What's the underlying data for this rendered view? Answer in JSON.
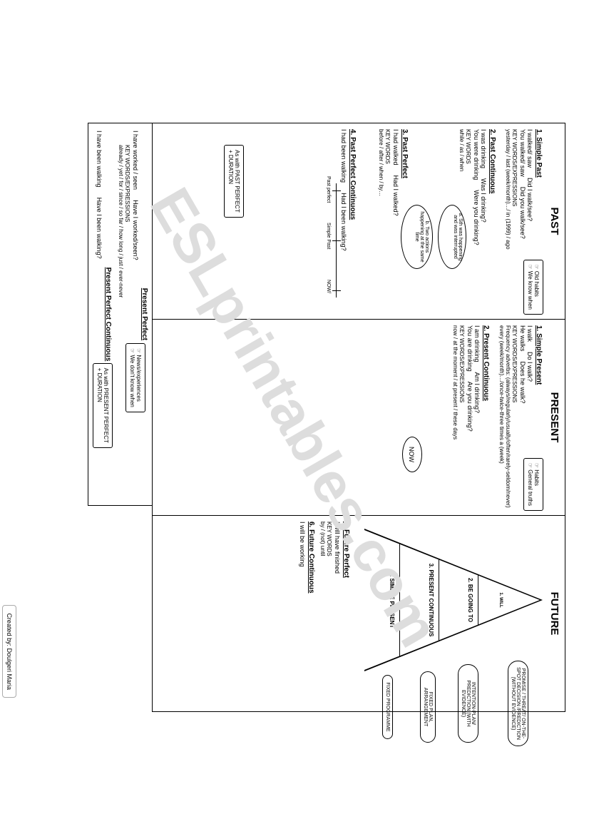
{
  "watermark": "ESLprintables.com",
  "columns": {
    "past": {
      "head": "PAST",
      "s1": {
        "title": "1. Simple Past",
        "line1a": "I walked/ saw",
        "line1b": "Did I walk/see?",
        "line2a": "You walked/ saw",
        "line2b": "Did you walk/see?"
      },
      "s1kw": {
        "lbl": "KEY WORDS/EXPRESSIONS",
        "txt": "yesterday / last (week/month)…/ in (1999) / ago"
      },
      "s1note": {
        "a": "☞ Old habits",
        "b": "☞ We know when"
      },
      "s2": {
        "title": "2. Past Continuous",
        "l1a": "I was drinking",
        "l1b": "Was I drinking?",
        "l2a": "You were drinking",
        "l2b": "Were you drinking?"
      },
      "s2kw": {
        "lbl": "KEY WORDS",
        "txt": "while / as / when"
      },
      "s2ovalA": "a. Sth was happening and was interrupted",
      "s2ovalB": "b. Two actions happening at the same time",
      "s3": {
        "title": "3. Past Perfect",
        "l1": "I had walked",
        "l2": "Had I walked?"
      },
      "s3kw": {
        "lbl": "KEY WORDS",
        "txt": "before / after / when / by…"
      },
      "tl": {
        "pp": "Past perfect",
        "sp": "Simple Past",
        "now": "NOW/"
      },
      "s4": {
        "title": "4. Past Perfect Continuous",
        "l1": "I had been walking",
        "l2": "Had I been walking?"
      },
      "s4note": {
        "a": "As with PAST PERFECT",
        "b": "+ DURATION"
      }
    },
    "present": {
      "head": "PRESENT",
      "s1": {
        "title": "1. Simple Present",
        "l1a": "I walk",
        "l1b": "Do I walk?",
        "l2a": "He walks",
        "l2b": "Does he walk?"
      },
      "s1kw": {
        "lbl": "KEY WORDS/EXPRESSIONS",
        "txt1": "Frequency adverbs: (always/regularly/usually/often/rarely-seldom/never)",
        "txt2": "every (week/month)…/once-twice-three times a (week)"
      },
      "s1note": {
        "a": "☞ Habits",
        "b": "☞ General truths"
      },
      "s2": {
        "title": "2. Present Continuous",
        "l1a": "I am drinking",
        "l1b": "Am I drinking?",
        "l2a": "You are drinking",
        "l2b": "Are you drinking?"
      },
      "s2kw": {
        "lbl": "KEY WORDS/EXPRESSIONS",
        "txt": "now / at the moment / at present / these days"
      },
      "s2oval": "NOW"
    },
    "future": {
      "head": "FUTURE",
      "tri": {
        "r1": "1. WILL",
        "r2": "2. BE GOING TO",
        "r3": "3. PRESENT CONTINUOUS",
        "r4": "4. SIMPLE PRESENT"
      },
      "bub": {
        "b1": "PROMISE / THREAT/ ON-THE-SPOT DECISION /PREDICTION (WITHOUT EVIDENCE)",
        "b2": "INTENTION-PLAN/ PREDICTION (WITH EVIDENCE)",
        "b3": "FIXED PLAN, ARRANGEMENT",
        "b4": "FIXED PROGRAMME"
      },
      "s5": {
        "title": "5. Future Perfect",
        "l1": "I will have finished"
      },
      "s5kw": {
        "lbl": "KEY WORDS",
        "txt": "by / (not) until"
      },
      "s6": {
        "title": "6. Future Continuous",
        "l1": "I will be working"
      }
    }
  },
  "bottom": {
    "pp": {
      "title": "Present Perfect",
      "l1": "I have worked / seen",
      "l2": "Have I worked/seen?"
    },
    "ppkw": {
      "lbl": "KEY WORDS/EXPRESSIONS",
      "txt": "already / yet / for / since / so far / how long / just / ever-never"
    },
    "ppnote": {
      "a": "☞ News/experiences",
      "b": "☞ We don't know when"
    },
    "ppc": {
      "title": "Present Perfect Continuous",
      "l1": "I have been walking",
      "l2": "Have I been walking?"
    },
    "ppcnote": {
      "a": "As with PRESENT PERFECT",
      "b": "+ DURATION"
    }
  },
  "created": "Created by: Doulgeri Maria"
}
